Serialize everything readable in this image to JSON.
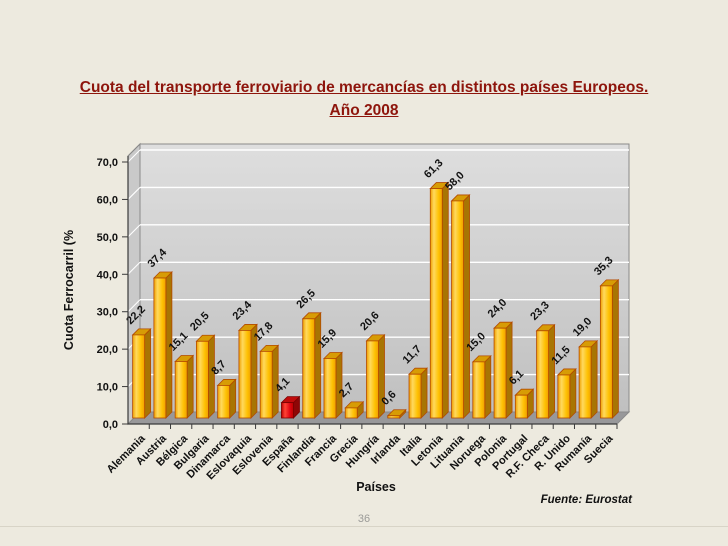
{
  "slide": {
    "title_line1": "Cuota del transporte ferroviario de mercancías en distintos países Europeos.",
    "title_line2": "Año 2008",
    "source_note": "Fuente: Eurostat",
    "page_number": "36"
  },
  "chart_data": {
    "type": "bar",
    "subtype": "3d-column",
    "title": "Cuota del transporte ferroviario de mercancías en distintos países Europeos. Año 2008",
    "xlabel": "Países",
    "ylabel": "Cuota Ferrocarril (%",
    "ylim": [
      0,
      70
    ],
    "yticks": [
      0,
      10,
      20,
      30,
      40,
      50,
      60,
      70
    ],
    "grid": true,
    "legend_position": "none",
    "decimal_separator": ",",
    "value_labels_shown": true,
    "categories": [
      "Alemania",
      "Austria",
      "Bélgica",
      "Bulgaria",
      "Dinamarca",
      "Eslovaquia",
      "Eslovenia",
      "España",
      "Finlandia",
      "Francia",
      "Grecia",
      "Hungría",
      "Irlanda",
      "Italia",
      "Letonia",
      "Lituania",
      "Noruega",
      "Polonia",
      "Portugal",
      "R.F. Checa",
      "R. Unido",
      "Rumanía",
      "Suecia"
    ],
    "values": [
      22.2,
      37.4,
      15.1,
      20.5,
      8.7,
      23.4,
      17.8,
      4.1,
      26.5,
      15.9,
      2.7,
      20.6,
      0.6,
      11.7,
      61.3,
      58.0,
      15.0,
      24.0,
      6.1,
      23.3,
      11.5,
      19.0,
      35.3
    ],
    "highlighted_category": "España",
    "colors": {
      "background": "#edeadf",
      "title_color": "#8e150c",
      "bar_front": "#fec103",
      "bar_front_light": "#ffd95e",
      "bar_front_dark": "#ef9f00",
      "bar_side": "#a87503",
      "bar_top": "#d79c05",
      "bar_outline": "#b34a00",
      "highlight_front": "#e00613",
      "highlight_front_light": "#ff4436",
      "highlight_front_dark": "#bb0000",
      "highlight_side": "#8e0606",
      "highlight_top": "#c00b0b",
      "highlight_outline": "#7a0000",
      "wall_top": "#dedede",
      "wall_bottom": "#c0c0c0",
      "left_wall": "#c9c9c9",
      "floor": "#98989a",
      "gridline": "#ffffff",
      "axis": "#3a3a3a",
      "wall_edge": "#8a8a8a",
      "label_color": "#111111"
    }
  }
}
